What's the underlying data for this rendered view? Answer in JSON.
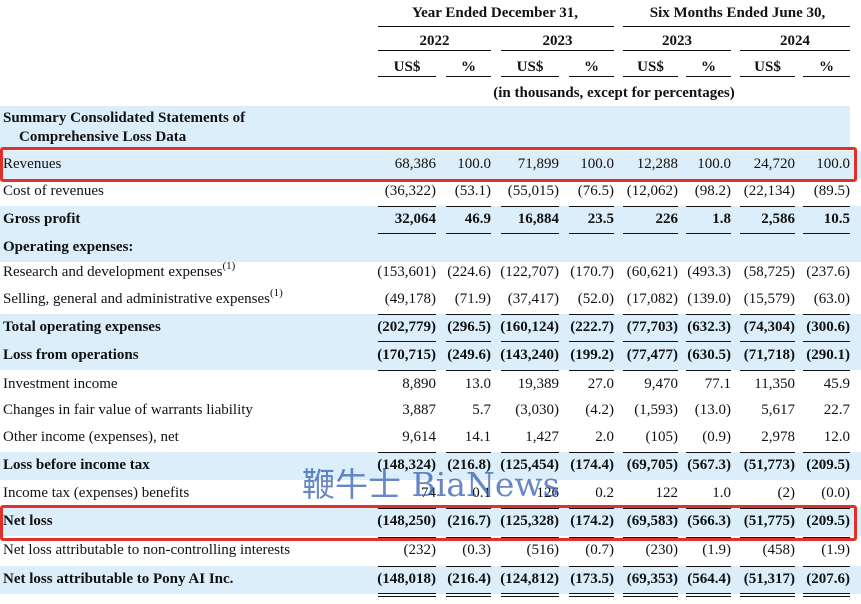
{
  "header": {
    "period_groups": [
      "Year Ended December 31,",
      "Six Months Ended June 30,"
    ],
    "years": [
      "2022",
      "2023",
      "2023",
      "2024"
    ],
    "unit_headers": [
      "US$",
      "%",
      "US$",
      "%",
      "US$",
      "%",
      "US$",
      "%"
    ],
    "note": "(in thousands, except for percentages)"
  },
  "section_title_line1": "Summary Consolidated Statements of",
  "section_title_line2": "Comprehensive Loss Data",
  "rows": [
    {
      "label": "Revenues",
      "values": [
        "68,386",
        "100.0",
        "71,899",
        "100.0",
        "12,288",
        "100.0",
        "24,720",
        "100.0"
      ]
    },
    {
      "label": "Cost of revenues",
      "values": [
        "(36,322)",
        "(53.1)",
        "(55,015)",
        "(76.5)",
        "(12,062)",
        "(98.2)",
        "(22,134)",
        "(89.5)"
      ]
    },
    {
      "label": "Gross profit",
      "values": [
        "32,064",
        "46.9",
        "16,884",
        "23.5",
        "226",
        "1.8",
        "2,586",
        "10.5"
      ]
    },
    {
      "label": "Operating expenses:",
      "values": [
        "",
        "",
        "",
        "",
        "",
        "",
        "",
        ""
      ]
    },
    {
      "label": "Research and development expenses",
      "note": "(1)",
      "values": [
        "(153,601)",
        "(224.6)",
        "(122,707)",
        "(170.7)",
        "(60,621)",
        "(493.3)",
        "(58,725)",
        "(237.6)"
      ]
    },
    {
      "label": "Selling, general and administrative expenses",
      "note": "(1)",
      "values": [
        "(49,178)",
        "(71.9)",
        "(37,417)",
        "(52.0)",
        "(17,082)",
        "(139.0)",
        "(15,579)",
        "(63.0)"
      ]
    },
    {
      "label": "Total operating expenses",
      "values": [
        "(202,779)",
        "(296.5)",
        "(160,124)",
        "(222.7)",
        "(77,703)",
        "(632.3)",
        "(74,304)",
        "(300.6)"
      ]
    },
    {
      "label": "Loss from operations",
      "values": [
        "(170,715)",
        "(249.6)",
        "(143,240)",
        "(199.2)",
        "(77,477)",
        "(630.5)",
        "(71,718)",
        "(290.1)"
      ]
    },
    {
      "label": "Investment income",
      "values": [
        "8,890",
        "13.0",
        "19,389",
        "27.0",
        "9,470",
        "77.1",
        "11,350",
        "45.9"
      ]
    },
    {
      "label": "Changes in fair value of warrants liability",
      "values": [
        "3,887",
        "5.7",
        "(3,030)",
        "(4.2)",
        "(1,593)",
        "(13.0)",
        "5,617",
        "22.7"
      ]
    },
    {
      "label": "Other income (expenses), net",
      "values": [
        "9,614",
        "14.1",
        "1,427",
        "2.0",
        "(105)",
        "(0.9)",
        "2,978",
        "12.0"
      ]
    },
    {
      "label": "Loss before income tax",
      "values": [
        "(148,324)",
        "(216.8)",
        "(125,454)",
        "(174.4)",
        "(69,705)",
        "(567.3)",
        "(51,773)",
        "(209.5)"
      ]
    },
    {
      "label": "Income tax (expenses) benefits",
      "values": [
        "74",
        "0.1",
        "126",
        "0.2",
        "122",
        "1.0",
        "(2)",
        "(0.0)"
      ]
    },
    {
      "label": "Net loss",
      "values": [
        "(148,250)",
        "(216.7)",
        "(125,328)",
        "(174.2)",
        "(69,583)",
        "(566.3)",
        "(51,775)",
        "(209.5)"
      ]
    },
    {
      "label": "Net loss attributable to non-controlling interests",
      "values": [
        "(232)",
        "(0.3)",
        "(516)",
        "(0.7)",
        "(230)",
        "(1.9)",
        "(458)",
        "(1.9)"
      ]
    },
    {
      "label": "Net loss attributable to Pony AI Inc.",
      "values": [
        "(148,018)",
        "(216.4)",
        "(124,812)",
        "(173.5)",
        "(69,353)",
        "(564.4)",
        "(51,317)",
        "(207.6)"
      ]
    }
  ],
  "watermark": "鞭牛士 BiaNews",
  "colors": {
    "row_shade": "#dbeef9",
    "highlight": "#e0302a",
    "watermark": "#2f5bb0"
  }
}
